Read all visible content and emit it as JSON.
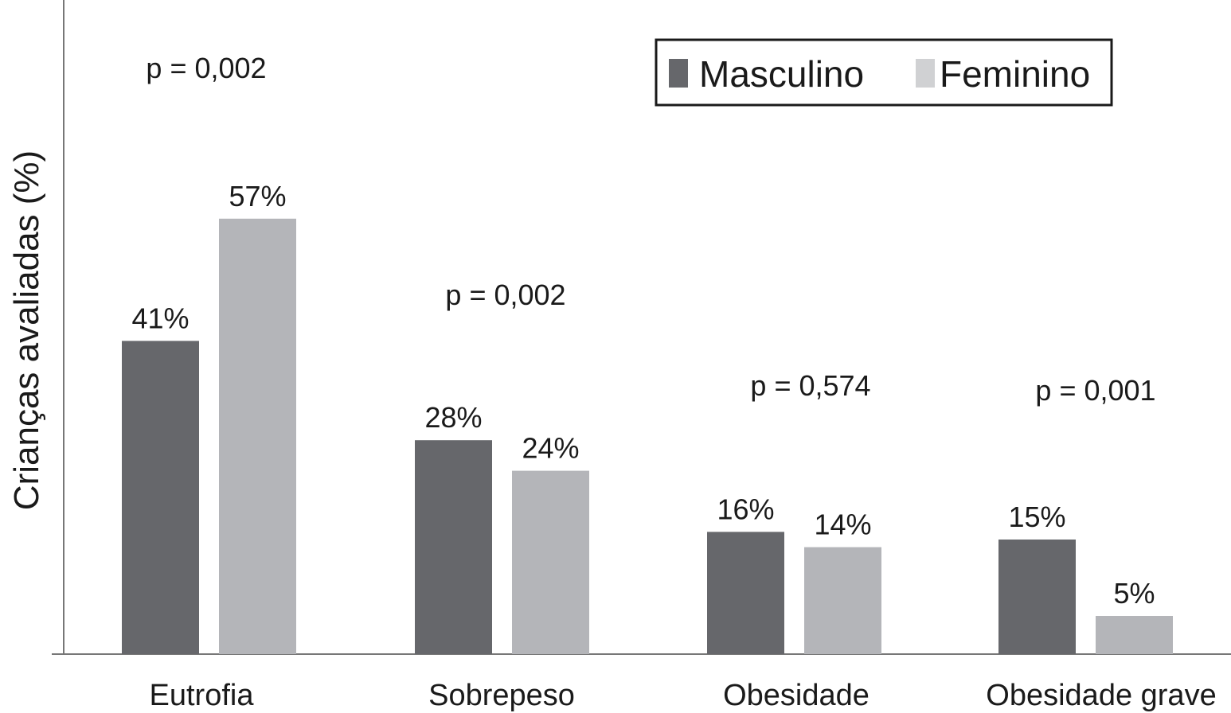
{
  "chart_data": {
    "type": "bar",
    "title": "",
    "xlabel": "",
    "ylabel": "Crianças avaliadas (%)",
    "ylim": [
      0,
      85
    ],
    "grid": false,
    "legend_position": "top-right",
    "categories": [
      "Eutrofia",
      "Sobrepeso",
      "Obesidade",
      "Obesidade grave"
    ],
    "series": [
      {
        "name": "Masculino",
        "color": "#66676b",
        "values": [
          41,
          28,
          16,
          15
        ],
        "labels": [
          "41%",
          "28%",
          "16%",
          "15%"
        ]
      },
      {
        "name": "Feminino",
        "color": "#b4b5b9",
        "values": [
          57,
          24,
          14,
          5
        ],
        "labels": [
          "57%",
          "24%",
          "14%",
          "5%"
        ]
      }
    ],
    "annotations": [
      "p = 0,002",
      "p = 0,002",
      "p = 0,574",
      "p = 0,001"
    ]
  }
}
